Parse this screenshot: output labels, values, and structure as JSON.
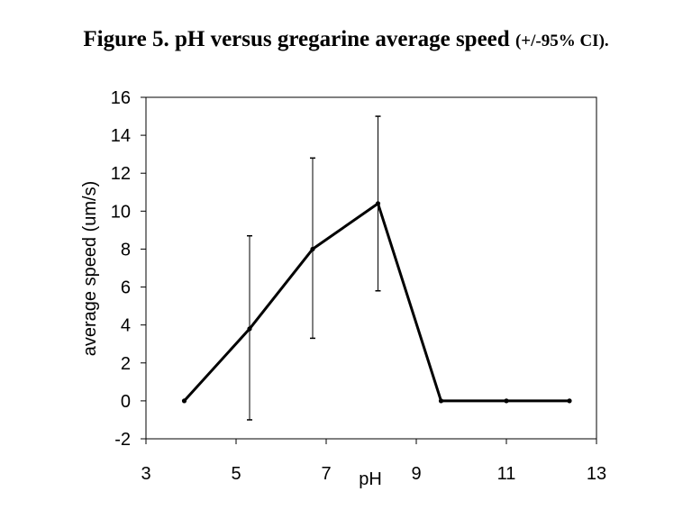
{
  "chart_data": {
    "type": "line",
    "title": "Figure 5. pH versus gregarine average speed",
    "title_suffix": "(+/-95% CI).",
    "xlabel": "pH",
    "ylabel": "average speed (um/s)",
    "xlim": [
      3,
      13
    ],
    "ylim": [
      -2,
      16
    ],
    "xticks": [
      3,
      5,
      7,
      9,
      11,
      13
    ],
    "yticks": [
      -2,
      0,
      2,
      4,
      6,
      8,
      10,
      12,
      14,
      16
    ],
    "grid": false,
    "legend": "none",
    "line_color": "#000000",
    "series": [
      {
        "x": [
          3.85,
          5.3,
          6.7,
          8.15,
          9.55,
          11.0,
          12.4
        ],
        "values": [
          0.0,
          3.8,
          8.0,
          10.4,
          0.0,
          0.0,
          0.0
        ],
        "error_low": [
          null,
          -1.0,
          3.3,
          5.8,
          null,
          null,
          null
        ],
        "error_high": [
          null,
          8.7,
          12.8,
          15.0,
          null,
          null,
          null
        ]
      }
    ]
  }
}
